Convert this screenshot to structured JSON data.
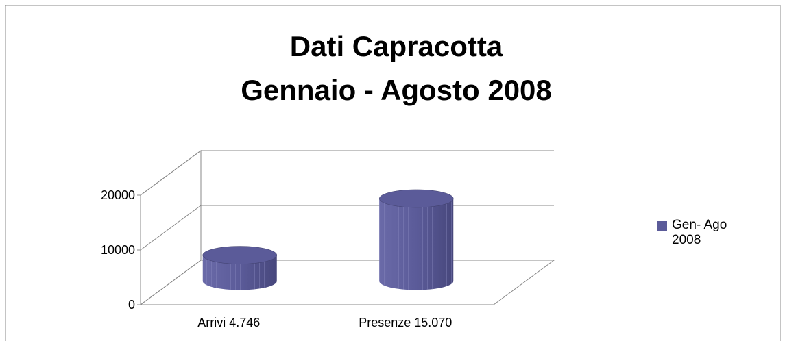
{
  "chart_data": {
    "type": "bar",
    "title": [
      "Dati Capracotta",
      "Gennaio - Agosto 2008"
    ],
    "categories": [
      "Arrivi 4.746",
      "Presenze 15.070"
    ],
    "series": [
      {
        "name": "Gen- Ago 2008",
        "color": "#5b5b99",
        "values": [
          4746,
          15070
        ]
      }
    ],
    "ylim": [
      0,
      20000
    ],
    "yticks": [
      0,
      10000,
      20000
    ],
    "grid": true,
    "legend": "right"
  }
}
